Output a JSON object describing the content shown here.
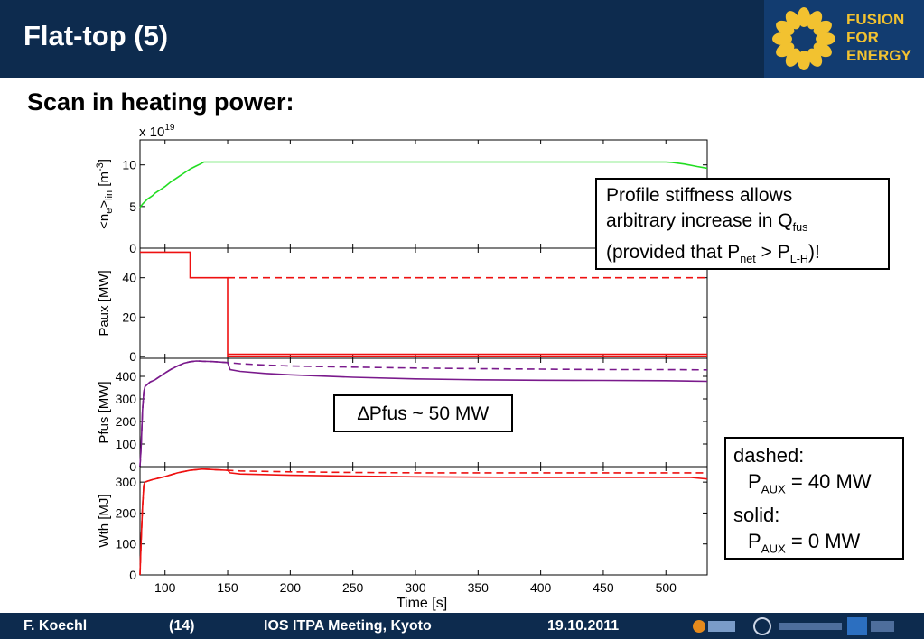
{
  "slide": {
    "title": "Flat-top (5)",
    "subtitle": "Scan in heating power:",
    "logo": {
      "lines": [
        "FUSION",
        "FOR",
        "ENERGY"
      ],
      "color": "#f2c230"
    },
    "callout_stiffness": {
      "line1": "Profile stiffness allows",
      "line2_pre": "arbitrary increase in Q",
      "line2_sub": "fus",
      "line3_pre": "(provided that P",
      "line3_sub1": "net",
      "line3_mid": " > P",
      "line3_sub2": "L-H",
      "line3_post": ")!"
    },
    "callout_dpfus": "∆Pfus ~ 50 MW",
    "legend_box": {
      "dashed_label": "dashed:",
      "dashed_p": "P",
      "dashed_sub": "AUX",
      "dashed_val": " = 40 MW",
      "solid_label": "solid:",
      "solid_p": "P",
      "solid_sub": "AUX",
      "solid_val": " = 0 MW"
    },
    "footer": {
      "author": "F. Koechl",
      "page": "(14)",
      "meeting": "IOS ITPA Meeting, Kyoto",
      "date": "19.10.2011"
    }
  },
  "chart_data": {
    "type": "line",
    "xlabel": "Time [s]",
    "xlim": [
      80,
      533
    ],
    "xticks": [
      100,
      150,
      200,
      250,
      300,
      350,
      400,
      450,
      500
    ],
    "colors": {
      "ne": "#22dd22",
      "paux": "#ee1111",
      "pfus": "#7a1a8c",
      "wth": "#ee1111"
    },
    "panels": [
      {
        "id": "ne",
        "ylabel": "<ne>lin [m-3]",
        "ylabel_parts": {
          "a": "<n",
          "b": "e",
          "c": ">",
          "d": "lin",
          "e": " [m",
          "f": "-3",
          "g": "]"
        },
        "exponent_label": "x 10",
        "exponent": "19",
        "ylim": [
          0,
          13
        ],
        "yticks": [
          0,
          5,
          10
        ],
        "series": [
          {
            "style": "solid",
            "x": [
              80,
              82,
              84,
              86,
              88,
              90,
              92,
              94,
              96,
              98,
              100,
              104,
              108,
              112,
              116,
              120,
              124,
              128,
              131,
              135,
              140,
              200,
              300,
              400,
              450,
              500,
              505,
              515,
              525,
              533
            ],
            "y": [
              4.9,
              5.3,
              5.6,
              5.9,
              6.1,
              6.3,
              6.6,
              6.8,
              7.0,
              7.2,
              7.4,
              7.9,
              8.3,
              8.7,
              9.1,
              9.5,
              9.8,
              10.1,
              10.35,
              10.35,
              10.35,
              10.35,
              10.35,
              10.35,
              10.35,
              10.35,
              10.3,
              10.1,
              9.8,
              9.6
            ]
          }
        ]
      },
      {
        "id": "paux",
        "ylabel": "Paux [MW]",
        "ylim": [
          -1,
          55
        ],
        "yticks": [
          0,
          20,
          40
        ],
        "series": [
          {
            "style": "solid",
            "x": [
              80,
              120,
              120,
              150,
              150,
              533
            ],
            "y": [
              53,
              53,
              40,
              40,
              0,
              0
            ]
          },
          {
            "style": "dashed",
            "x": [
              150,
              533
            ],
            "y": [
              40,
              40
            ]
          },
          {
            "style": "solid",
            "x": [
              150,
              533
            ],
            "y": [
              1,
              1
            ]
          }
        ]
      },
      {
        "id": "pfus",
        "ylabel": "Pfus [MW]",
        "ylim": [
          0,
          480
        ],
        "yticks": [
          0,
          100,
          200,
          300,
          400
        ],
        "series": [
          {
            "style": "dashed",
            "x": [
              80,
              81,
              82,
              83,
              84,
              86,
              88,
              92,
              96,
              100,
              105,
              110,
              115,
              120,
              125,
              130,
              135,
              140,
              145,
              150,
              160,
              180,
              200,
              250,
              300,
              350,
              400,
              450,
              500,
              533
            ],
            "y": [
              0,
              100,
              250,
              330,
              355,
              365,
              375,
              385,
              400,
              415,
              432,
              446,
              458,
              465,
              468,
              467,
              466,
              465,
              463,
              461,
              456,
              450,
              446,
              441,
              437,
              434,
              432,
              430,
              430,
              429
            ]
          },
          {
            "style": "solid",
            "x": [
              80,
              81,
              82,
              83,
              84,
              86,
              88,
              92,
              96,
              100,
              105,
              110,
              115,
              120,
              125,
              130,
              135,
              140,
              145,
              150,
              152,
              160,
              180,
              200,
              250,
              300,
              350,
              400,
              450,
              500,
              533
            ],
            "y": [
              0,
              100,
              250,
              330,
              355,
              365,
              375,
              385,
              400,
              415,
              432,
              446,
              458,
              465,
              468,
              467,
              466,
              465,
              463,
              461,
              430,
              422,
              413,
              407,
              396,
              389,
              385,
              383,
              382,
              381,
              378
            ]
          }
        ]
      },
      {
        "id": "wth",
        "ylabel": "Wth [MJ]",
        "ylim": [
          0,
          350
        ],
        "yticks": [
          0,
          100,
          200,
          300
        ],
        "series": [
          {
            "style": "dashed",
            "x": [
              80,
              81,
              82,
              83,
              84,
              86,
              90,
              95,
              100,
              110,
              120,
              130,
              140,
              150,
              160,
              200,
              250,
              300,
              350,
              400,
              450,
              500,
              533
            ],
            "y": [
              0,
              120,
              220,
              290,
              300,
              303,
              308,
              313,
              318,
              330,
              338,
              342,
              340,
              338,
              336,
              333,
              331,
              330,
              330,
              330,
              330,
              330,
              330
            ]
          },
          {
            "style": "solid",
            "x": [
              80,
              81,
              82,
              83,
              84,
              86,
              90,
              95,
              100,
              110,
              120,
              130,
              140,
              150,
              152,
              160,
              200,
              250,
              300,
              350,
              400,
              450,
              500,
              520,
              533
            ],
            "y": [
              0,
              120,
              220,
              290,
              300,
              303,
              308,
              313,
              318,
              330,
              338,
              342,
              340,
              338,
              330,
              326,
              322,
              319,
              317,
              316,
              315,
              315,
              315,
              315,
              310
            ]
          }
        ]
      }
    ]
  }
}
